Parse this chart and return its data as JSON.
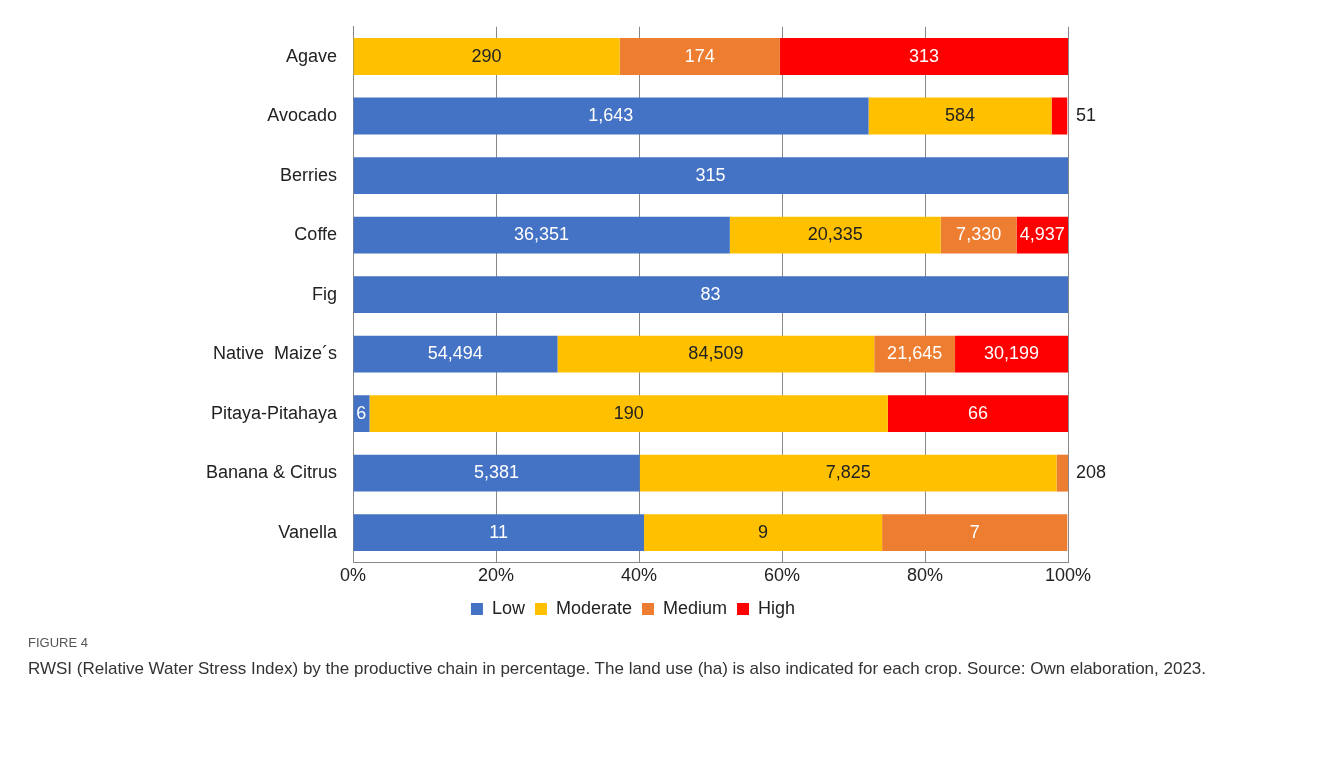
{
  "chart_data": {
    "type": "bar",
    "orientation": "horizontal",
    "stacked": true,
    "categories": [
      "Agave",
      "Avocado",
      "Berries",
      "Coffe",
      "Fig",
      "Native  Maize´s",
      "Pitaya-Pitahaya",
      "Banana & Citrus",
      "Vanella"
    ],
    "series": [
      {
        "name": "Low",
        "color": "#4472c4",
        "values": [
          null,
          72.1,
          100,
          52.7,
          100,
          28.6,
          2.3,
          40.1,
          40.7
        ]
      },
      {
        "name": "Moderate",
        "color": "#ffc000",
        "values": [
          37.3,
          25.6,
          null,
          29.5,
          null,
          44.3,
          72.5,
          58.3,
          33.3
        ]
      },
      {
        "name": "Medium",
        "color": "#ed7d31",
        "values": [
          22.4,
          null,
          null,
          10.6,
          null,
          11.3,
          null,
          1.6,
          25.9
        ]
      },
      {
        "name": "High",
        "color": "#ff0000",
        "values": [
          40.3,
          2.2,
          null,
          7.2,
          null,
          15.8,
          25.2,
          null,
          null
        ]
      }
    ],
    "xlim": [
      0,
      100
    ],
    "xticks": [
      {
        "value": 0,
        "label": "0%"
      },
      {
        "value": 20,
        "label": "20%"
      },
      {
        "value": 40,
        "label": "40%"
      },
      {
        "value": 60,
        "label": "60%"
      },
      {
        "value": 80,
        "label": "80%"
      },
      {
        "value": 100,
        "label": "100%"
      }
    ],
    "grid": "x",
    "legend": "bottom",
    "annotations": [
      "290",
      "174",
      "313",
      "1,643",
      "584",
      "51",
      "315",
      "36,351",
      "20,335",
      "7,330",
      "4,937",
      "83",
      "54,494",
      "84,509",
      "21,645",
      "30,199",
      "6",
      "190",
      "66",
      "5,381",
      "7,825",
      "208",
      "11",
      "9",
      "7",
      "FIGURE 4",
      "RWSI (Relative Water Stress Index) by the productive chain in percentage. The land use (ha) is also indicated for each crop. Source: Own elaboration, 2023."
    ]
  }
}
